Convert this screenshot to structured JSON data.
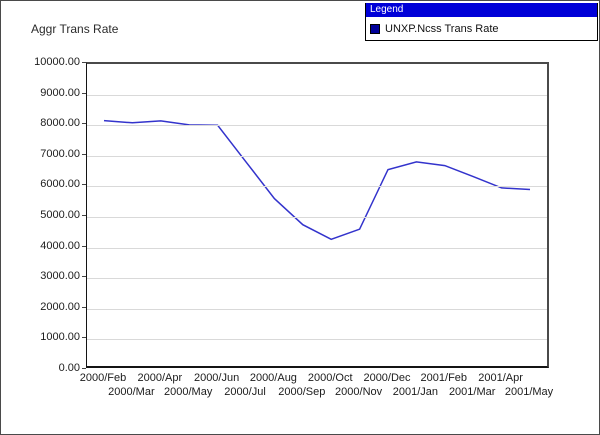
{
  "title": "Aggr Trans Rate",
  "legend": {
    "title": "Legend",
    "entries": [
      {
        "label": "UNXP.Ncss Trans Rate",
        "swatch_color": "#000099"
      }
    ]
  },
  "colors": {
    "series_line": "#3333cc",
    "legend_titlebar": "#0000d8",
    "gridline": "#d9d9d9"
  },
  "chart_data": {
    "type": "line",
    "title": "Aggr Trans Rate",
    "x": [
      "2000/Feb",
      "2000/Mar",
      "2000/Apr",
      "2000/May",
      "2000/Jun",
      "2000/Jul",
      "2000/Aug",
      "2000/Sep",
      "2000/Oct",
      "2000/Nov",
      "2000/Dec",
      "2001/Jan",
      "2001/Feb",
      "2001/Mar",
      "2001/Apr",
      "2001/May"
    ],
    "series": [
      {
        "name": "UNXP.Ncss Trans Rate",
        "color": "#3333cc",
        "values": [
          8150,
          8080,
          8140,
          8010,
          8000,
          6800,
          5600,
          4750,
          4270,
          4600,
          6550,
          6800,
          6680,
          6320,
          5950,
          5900
        ]
      }
    ],
    "xlabel": "",
    "ylabel": "",
    "ylim": [
      0,
      10000
    ],
    "ytick_step": 1000,
    "ytick_labels": [
      "0.00",
      "1000.00",
      "2000.00",
      "3000.00",
      "4000.00",
      "5000.00",
      "6000.00",
      "7000.00",
      "8000.00",
      "9000.00",
      "10000.00"
    ],
    "grid": true,
    "legend_position": "top-right"
  }
}
